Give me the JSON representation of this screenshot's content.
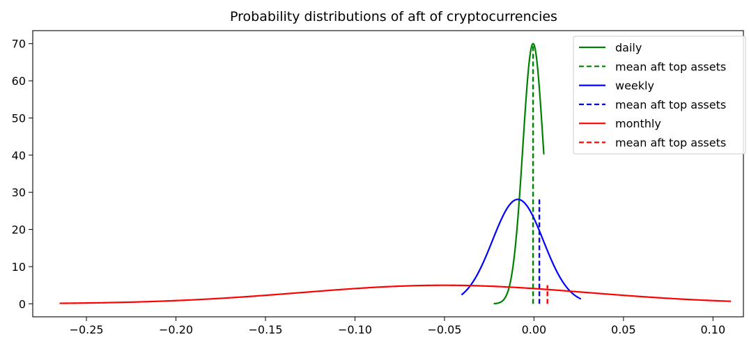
{
  "chart_data": {
    "type": "line",
    "title": "Probability distributions of aft of cryptocurrencies",
    "xlabel": "",
    "ylabel": "",
    "xlim": [
      -0.28,
      0.117
    ],
    "ylim": [
      -3.5,
      73.5
    ],
    "xticks": [
      -0.25,
      -0.2,
      -0.15,
      -0.1,
      -0.05,
      0.0,
      0.05,
      0.1
    ],
    "xtick_labels": [
      "−0.25",
      "−0.20",
      "−0.15",
      "−0.10",
      "−0.05",
      "0.00",
      "0.05",
      "0.10"
    ],
    "yticks": [
      0,
      10,
      20,
      30,
      40,
      50,
      60,
      70
    ],
    "ytick_labels": [
      "0",
      "10",
      "20",
      "30",
      "40",
      "50",
      "60",
      "70"
    ],
    "grid": false,
    "legend_position": "top-right",
    "series": [
      {
        "name": "daily",
        "kind": "normal-pdf",
        "color": "#008000",
        "mean": -0.0005,
        "std": 0.0057,
        "x_range": [
          -0.0225,
          0.0055
        ]
      },
      {
        "name": "mean aft top assets",
        "kind": "vline",
        "color": "#008000",
        "x": -0.0005,
        "y_range": [
          0,
          70
        ]
      },
      {
        "name": "weekly",
        "kind": "normal-pdf",
        "color": "#0000ff",
        "mean": -0.009,
        "std": 0.0142,
        "x_range": [
          -0.0405,
          0.0262
        ]
      },
      {
        "name": "mean aft top assets",
        "kind": "vline",
        "color": "#0000ff",
        "x": 0.003,
        "y_range": [
          0,
          28.2
        ]
      },
      {
        "name": "monthly",
        "kind": "normal-pdf",
        "color": "#ff0000",
        "mean": -0.05,
        "std": 0.08,
        "x_range": [
          -0.265,
          0.11
        ]
      },
      {
        "name": "mean aft top assets",
        "kind": "vline",
        "color": "#ff0000",
        "x": 0.0075,
        "y_range": [
          0,
          5.0
        ]
      }
    ]
  }
}
